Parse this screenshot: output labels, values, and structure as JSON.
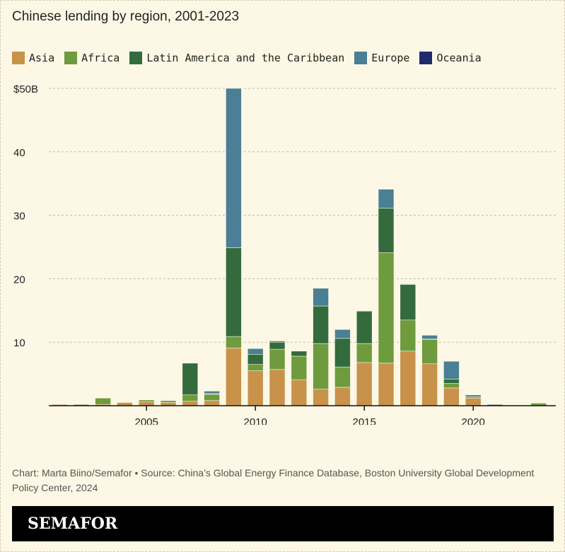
{
  "chart_data": {
    "type": "bar",
    "stacked": true,
    "title": "Chinese lending by region, 2001-2023",
    "categories": [
      2001,
      2002,
      2003,
      2004,
      2005,
      2006,
      2007,
      2008,
      2009,
      2010,
      2011,
      2012,
      2013,
      2014,
      2015,
      2016,
      2017,
      2018,
      2019,
      2020,
      2021,
      2022,
      2023
    ],
    "series": [
      {
        "name": "Asia",
        "color": "#c8924a",
        "values": [
          0.2,
          0,
          0.2,
          0.5,
          0.6,
          0.5,
          0.7,
          0.8,
          9.1,
          5.5,
          5.7,
          4.1,
          2.6,
          2.9,
          6.8,
          6.7,
          8.6,
          6.6,
          2.8,
          1.2,
          0,
          0,
          0
        ]
      },
      {
        "name": "Africa",
        "color": "#6e9b3d",
        "values": [
          0,
          0.2,
          1.0,
          0,
          0.3,
          0.3,
          1.0,
          1.0,
          1.8,
          1.0,
          3.2,
          3.7,
          7.2,
          3.2,
          3.0,
          17.4,
          4.9,
          3.8,
          0.7,
          0.2,
          0,
          0,
          0.4
        ]
      },
      {
        "name": "Latin America and the Caribbean",
        "color": "#336b3d",
        "values": [
          0,
          0,
          0,
          0,
          0,
          0,
          5.0,
          0.1,
          14.0,
          1.6,
          1.1,
          0.8,
          5.9,
          4.5,
          5.1,
          7.0,
          5.6,
          0.1,
          0.7,
          0,
          0,
          0,
          0
        ]
      },
      {
        "name": "Europe",
        "color": "#4a7f95",
        "values": [
          0,
          0,
          0,
          0,
          0,
          0,
          0,
          0.4,
          25.1,
          0.9,
          0.2,
          0,
          2.8,
          1.4,
          0,
          3.0,
          0.1,
          0.6,
          2.8,
          0.3,
          0.2,
          0,
          0
        ]
      },
      {
        "name": "Oceania",
        "color": "#1f2a6e",
        "values": [
          0,
          0,
          0,
          0,
          0,
          0,
          0,
          0,
          0,
          0,
          0,
          0,
          0,
          0,
          0,
          0,
          0,
          0,
          0,
          0,
          0,
          0,
          0
        ]
      }
    ],
    "ylim": [
      0,
      50
    ],
    "yticks": [
      {
        "v": 10,
        "label": "10"
      },
      {
        "v": 20,
        "label": "20"
      },
      {
        "v": 30,
        "label": "30"
      },
      {
        "v": 40,
        "label": "40"
      },
      {
        "v": 50,
        "label": "$50B"
      }
    ],
    "xticks": [
      2005,
      2010,
      2015,
      2020
    ],
    "grid": true,
    "legend": "top-left"
  },
  "credit": "Chart: Marta Biino/Semafor • Source: China’s Global Energy Finance Database, Boston University Global Development Policy Center, 2024",
  "logo": "SEMAFOR"
}
